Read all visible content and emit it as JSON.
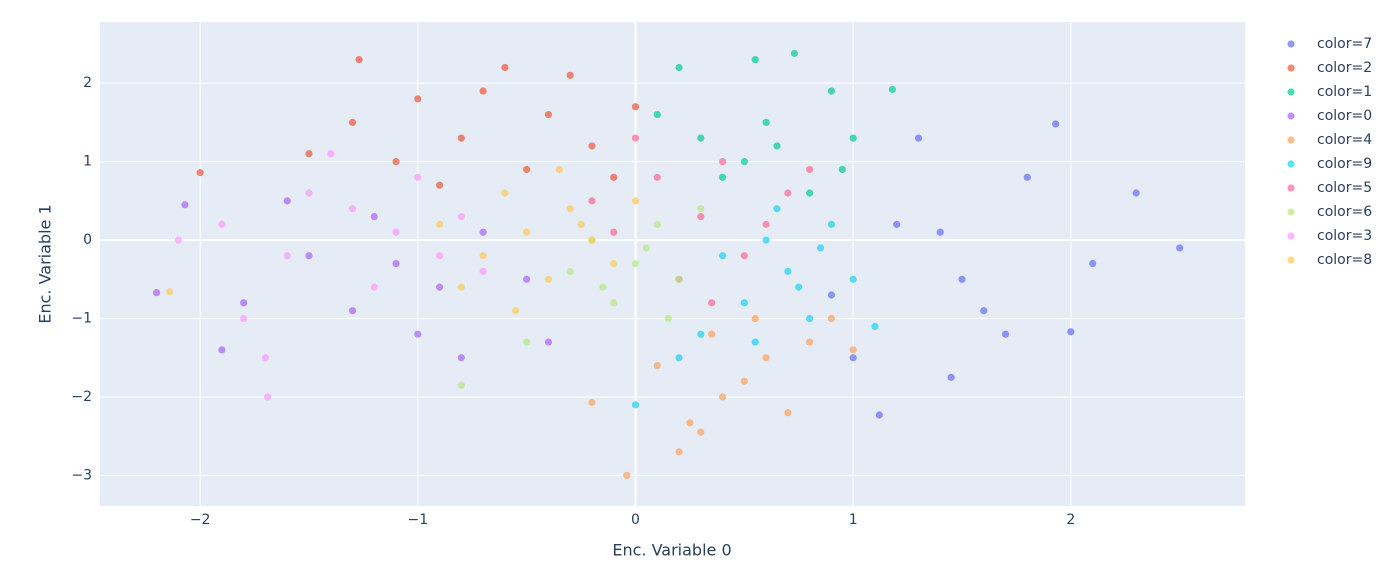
{
  "chart_data": {
    "type": "scatter",
    "x_label": "Enc. Variable 0",
    "y_label": "Enc. Variable 1",
    "xlim": [
      -2.46,
      2.8
    ],
    "ylim": [
      -3.39,
      2.78
    ],
    "xticks": [
      {
        "value": -2,
        "label": "−2"
      },
      {
        "value": -1,
        "label": "−1"
      },
      0,
      1,
      2
    ],
    "yticks": [
      {
        "value": -3,
        "label": "−3"
      },
      {
        "value": -2,
        "label": "−2"
      },
      {
        "value": -1,
        "label": "−1"
      },
      0,
      1,
      2
    ],
    "grid": true,
    "legend": "right",
    "opacity": 0.7,
    "series": [
      {
        "name": "color=7",
        "color": "#636efa",
        "x": [
          1.2,
          1.5,
          1.8,
          2.1,
          2.5,
          1.93,
          1.3,
          1.0,
          1.6,
          1.4,
          2.3,
          1.12,
          0.9,
          1.7,
          1.45,
          2.0
        ],
        "values": [
          0.2,
          -0.5,
          0.8,
          -0.3,
          -0.1,
          1.48,
          1.3,
          -1.5,
          -0.9,
          0.1,
          0.6,
          -2.23,
          -0.7,
          -1.2,
          -1.75,
          -1.17
        ]
      },
      {
        "name": "color=2",
        "color": "#EF553B",
        "x": [
          -1.27,
          -1.0,
          -0.6,
          -0.4,
          -0.8,
          -0.2,
          -1.3,
          -0.5,
          0.0,
          -1.5,
          -0.9,
          -0.3,
          -2.0,
          -1.1,
          -0.7,
          -0.1
        ],
        "values": [
          2.3,
          1.8,
          2.2,
          1.6,
          1.3,
          1.2,
          1.5,
          0.9,
          1.7,
          1.1,
          0.7,
          2.1,
          0.86,
          1.0,
          1.9,
          0.8
        ]
      },
      {
        "name": "color=1",
        "color": "#00cc96",
        "x": [
          0.73,
          0.6,
          0.9,
          0.3,
          0.5,
          1.18,
          0.8,
          0.2,
          0.4,
          1.0,
          0.65,
          0.1,
          0.55,
          0.95
        ],
        "values": [
          2.38,
          1.5,
          1.9,
          1.3,
          1.0,
          1.92,
          0.6,
          2.2,
          0.8,
          1.3,
          1.2,
          1.6,
          2.3,
          0.9
        ]
      },
      {
        "name": "color=0",
        "color": "#ab63fa",
        "x": [
          -2.2,
          -1.9,
          -1.5,
          -1.2,
          -0.9,
          -1.0,
          -0.7,
          -1.3,
          -1.6,
          -0.5,
          -1.1,
          -0.8,
          -1.8,
          -2.07,
          -0.4
        ],
        "values": [
          -0.67,
          -1.4,
          -0.2,
          0.3,
          -0.6,
          -1.2,
          0.1,
          -0.9,
          0.5,
          -0.5,
          -0.3,
          -1.5,
          -0.8,
          0.45,
          -1.3
        ]
      },
      {
        "name": "color=4",
        "color": "#FFA15A",
        "x": [
          -0.04,
          0.3,
          0.5,
          0.8,
          0.2,
          0.6,
          0.9,
          0.4,
          0.1,
          0.7,
          -0.2,
          0.35,
          1.0,
          0.25,
          0.55
        ],
        "values": [
          -3.0,
          -2.45,
          -1.8,
          -1.3,
          -2.7,
          -1.5,
          -1.0,
          -2.0,
          -1.6,
          -2.2,
          -2.07,
          -1.2,
          -1.4,
          -2.33,
          -1.0
        ]
      },
      {
        "name": "color=9",
        "color": "#19d3f3",
        "x": [
          0.7,
          0.5,
          0.9,
          0.3,
          0.6,
          1.0,
          0.8,
          0.4,
          0.2,
          0.65,
          0.75,
          0.55,
          0.85,
          1.1,
          0.0
        ],
        "values": [
          -0.4,
          -0.8,
          0.2,
          -1.2,
          0.0,
          -0.5,
          -1.0,
          -0.2,
          -1.5,
          0.4,
          -0.6,
          -1.3,
          -0.1,
          -1.1,
          -2.1
        ]
      },
      {
        "name": "color=5",
        "color": "#FF6692",
        "x": [
          0.3,
          0.1,
          0.5,
          -0.1,
          0.4,
          0.7,
          0.2,
          0.6,
          0.0,
          0.35,
          0.8,
          -0.2
        ],
        "values": [
          0.3,
          0.8,
          -0.2,
          0.1,
          1.0,
          0.6,
          -0.5,
          0.2,
          1.3,
          -0.8,
          0.9,
          0.5
        ]
      },
      {
        "name": "color=6",
        "color": "#B6E880",
        "x": [
          0.0,
          -0.2,
          0.2,
          -0.1,
          0.1,
          -0.3,
          0.15,
          -0.5,
          -0.8,
          0.05,
          -0.15,
          0.3
        ],
        "values": [
          -0.3,
          0.0,
          -0.5,
          -0.8,
          0.2,
          -0.4,
          -1.0,
          -1.3,
          -1.85,
          -0.1,
          -0.6,
          0.4
        ]
      },
      {
        "name": "color=3",
        "color": "#FF97FF",
        "x": [
          -1.1,
          -1.3,
          -0.9,
          -1.5,
          -1.7,
          -1.0,
          -1.2,
          -2.1,
          -1.8,
          -0.8,
          -1.4,
          -1.69,
          -0.7,
          -1.6,
          -1.9
        ],
        "values": [
          0.1,
          0.4,
          -0.2,
          0.6,
          -1.5,
          0.8,
          -0.6,
          0.0,
          -1.0,
          0.3,
          1.1,
          -2.0,
          -0.4,
          -0.2,
          0.2
        ]
      },
      {
        "name": "color=8",
        "color": "#FECB52",
        "x": [
          -0.5,
          -0.3,
          -0.7,
          -0.2,
          -0.6,
          -0.4,
          -0.9,
          0.0,
          -0.1,
          -0.8,
          -0.35,
          -2.14,
          -0.55,
          -0.25
        ],
        "values": [
          0.1,
          0.4,
          -0.2,
          0.0,
          0.6,
          -0.5,
          0.2,
          0.5,
          -0.3,
          -0.6,
          0.9,
          -0.66,
          -0.9,
          0.2
        ]
      }
    ]
  }
}
